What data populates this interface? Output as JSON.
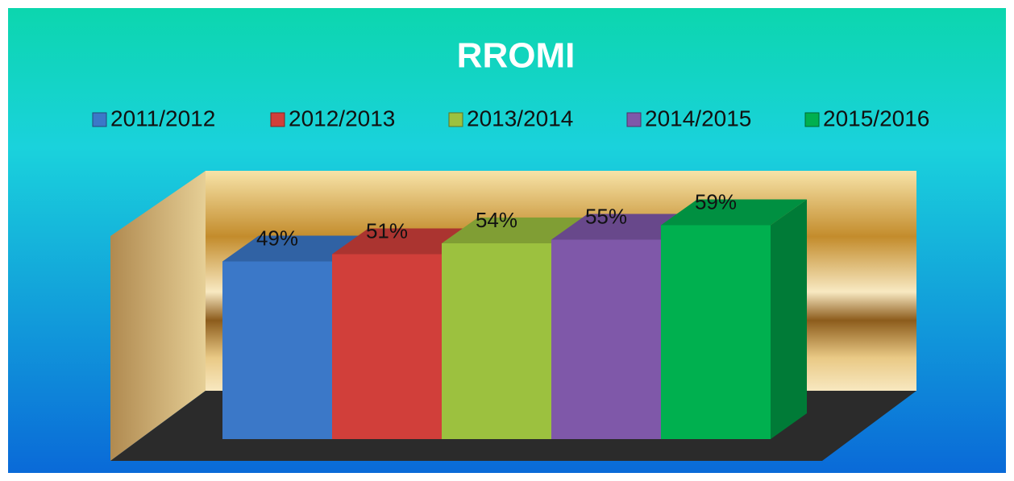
{
  "chart_data": {
    "type": "bar3d",
    "title": "RROMI",
    "series": [
      {
        "name": "2011/2012",
        "color": "#3b78c8",
        "values": [
          49
        ],
        "value_labels": [
          "49%"
        ]
      },
      {
        "name": "2012/2013",
        "color": "#d13f3a",
        "values": [
          51
        ],
        "value_labels": [
          "51%"
        ]
      },
      {
        "name": "2013/2014",
        "color": "#9cc13f",
        "values": [
          54
        ],
        "value_labels": [
          "54%"
        ]
      },
      {
        "name": "2014/2015",
        "color": "#7f58a9",
        "values": [
          55
        ],
        "value_labels": [
          "55%"
        ]
      },
      {
        "name": "2015/2016",
        "color": "#00b04f",
        "values": [
          59
        ],
        "value_labels": [
          "59%"
        ]
      }
    ],
    "ylim": [
      0,
      70
    ],
    "legend": "top"
  }
}
